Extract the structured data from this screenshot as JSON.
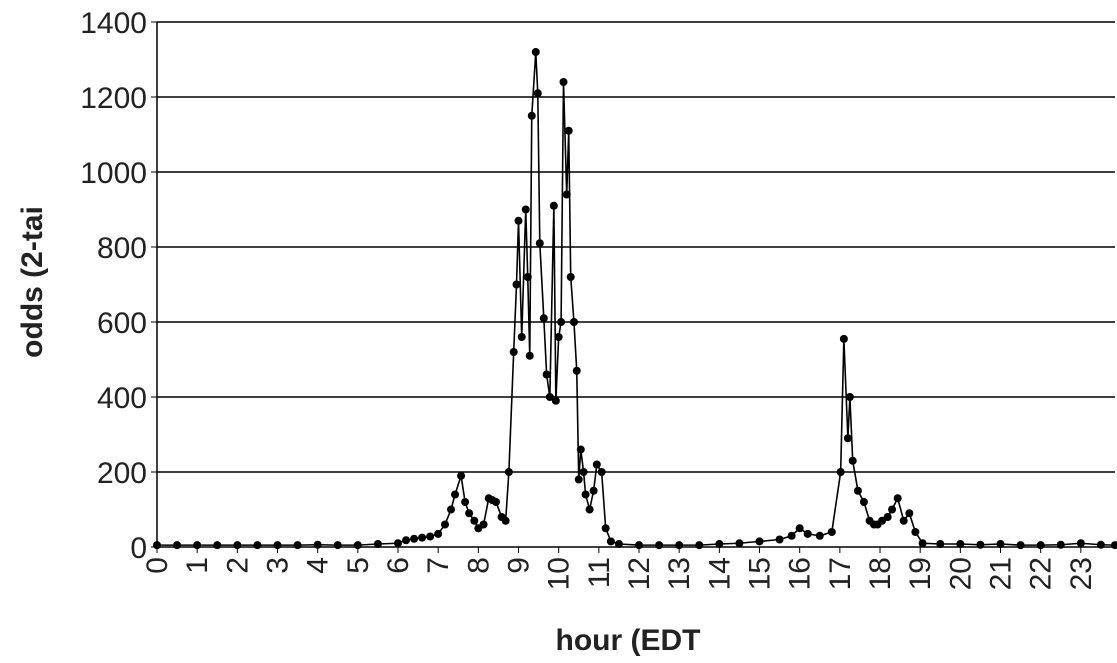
{
  "chart_data": {
    "type": "line",
    "x_label": "hour (EDT",
    "y_label": "odds (2-tai",
    "xlim": [
      0,
      23.85
    ],
    "ylim": [
      0,
      1400
    ],
    "xticks": [
      0,
      1,
      2,
      3,
      4,
      5,
      6,
      7,
      8,
      9,
      10,
      11,
      12,
      13,
      14,
      15,
      16,
      17,
      18,
      19,
      20,
      21,
      22,
      23
    ],
    "yticks": [
      0,
      200,
      400,
      600,
      800,
      1000,
      1200,
      1400
    ],
    "grid": true,
    "series": [
      {
        "color": "#000000",
        "x": [
          0,
          0.5,
          1,
          1.5,
          2,
          2.5,
          3,
          3.5,
          4,
          4.5,
          5,
          5.5,
          6,
          6.2,
          6.4,
          6.6,
          6.8,
          7.0,
          7.17,
          7.32,
          7.42,
          7.57,
          7.67,
          7.77,
          7.9,
          8.0,
          8.13,
          8.26,
          8.35,
          8.44,
          8.58,
          8.68,
          8.76,
          8.88,
          8.95,
          9.0,
          9.08,
          9.18,
          9.23,
          9.28,
          9.33,
          9.43,
          9.48,
          9.53,
          9.63,
          9.7,
          9.78,
          9.88,
          9.93,
          10.0,
          10.06,
          10.12,
          10.2,
          10.25,
          10.3,
          10.38,
          10.45,
          10.5,
          10.55,
          10.62,
          10.67,
          10.77,
          10.87,
          10.95,
          11.07,
          11.17,
          11.3,
          11.5,
          12,
          12.5,
          13,
          13.5,
          14,
          14.5,
          15,
          15.5,
          15.8,
          16.0,
          16.2,
          16.5,
          16.8,
          17.02,
          17.1,
          17.2,
          17.25,
          17.32,
          17.45,
          17.6,
          17.74,
          17.85,
          17.94,
          18.05,
          18.19,
          18.3,
          18.44,
          18.59,
          18.73,
          18.88,
          19.06,
          19.5,
          20,
          20.5,
          21,
          21.5,
          22,
          22.5,
          23,
          23.5,
          23.85
        ],
        "values": [
          5,
          5,
          5,
          5,
          5,
          5,
          5,
          5,
          6,
          5,
          5,
          8,
          10,
          18,
          22,
          25,
          28,
          35,
          60,
          100,
          140,
          190,
          120,
          90,
          70,
          50,
          60,
          130,
          125,
          120,
          80,
          70,
          200,
          520,
          700,
          870,
          560,
          900,
          720,
          510,
          1150,
          1320,
          1210,
          810,
          610,
          460,
          400,
          910,
          390,
          560,
          600,
          1240,
          940,
          1110,
          720,
          600,
          470,
          180,
          260,
          200,
          140,
          100,
          150,
          220,
          200,
          50,
          15,
          8,
          5,
          5,
          5,
          5,
          8,
          10,
          15,
          20,
          30,
          50,
          35,
          30,
          40,
          200,
          555,
          290,
          400,
          230,
          150,
          120,
          70,
          60,
          60,
          70,
          80,
          100,
          130,
          70,
          90,
          40,
          10,
          8,
          8,
          6,
          8,
          5,
          5,
          6,
          10,
          6,
          5
        ]
      }
    ]
  }
}
